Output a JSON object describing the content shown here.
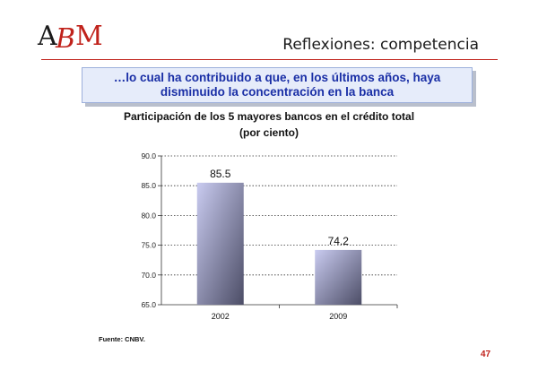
{
  "logo": {
    "text": "ABM",
    "colors": {
      "a": "#1a1a1a",
      "b": "#c0221b",
      "m": "#c0221b"
    }
  },
  "slide": {
    "title": "Reflexiones: competencia",
    "banner_line1": "…lo cual ha contribuido a que, en los últimos años, haya",
    "banner_line2": "disminuido la concentración en la banca",
    "source": "Fuente: CNBV.",
    "page_number": "47"
  },
  "chart_data": {
    "type": "bar",
    "title": "Participación de los 5 mayores bancos en el crédito total",
    "subtitle": "(por ciento)",
    "categories": [
      "2002",
      "2009"
    ],
    "values": [
      85.5,
      74.2
    ],
    "value_labels": [
      "85.5",
      "74.2"
    ],
    "ylim": [
      65.0,
      90.0
    ],
    "yticks": [
      "65.0",
      "70.0",
      "75.0",
      "80.0",
      "85.0",
      "90.0"
    ],
    "grid": "dotted horizontal",
    "bar_colors": {
      "light": "#c9cbf0",
      "dark": "#4c4d66"
    }
  },
  "colors": {
    "accent": "#c0221b",
    "banner_text": "#1a2fa6",
    "banner_bg": "#e6ecfa"
  }
}
